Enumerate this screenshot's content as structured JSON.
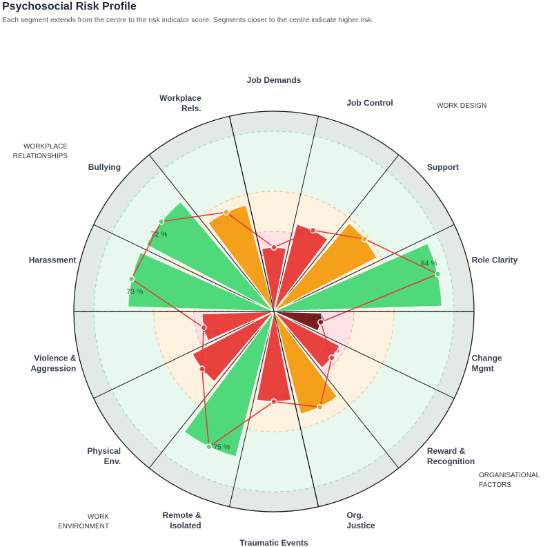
{
  "header": {
    "title": "Psychosocial Risk Profile",
    "subtitle": "Each segment extends from the centre to the risk indicator score. Segments closer to the centre indicate higher risk."
  },
  "colors": {
    "low": "#e8423f",
    "moderate": "#f5a01a",
    "high": "#4fd97a",
    "critical": "#7a1f1f",
    "line": "#e83a3a",
    "ring_outer": "#e3e9e5",
    "zone_green": "#e8f8ef",
    "zone_orange": "#fdf1e0",
    "zone_red": "#fde3e5"
  },
  "chart_data": {
    "type": "polar-bar",
    "title": "Psychosocial Risk Profile",
    "subtitle": "Each segment extends from the centre to the risk indicator score. Segments closer to the centre indicate higher risk.",
    "radial_range": [
      0,
      100
    ],
    "categories": [
      "Job Demands",
      "Job Control",
      "Support",
      "Role Clarity",
      "Change\nMgmt",
      "Reward &\nRecognition",
      "Org.\nJustice",
      "Traumatic Events",
      "Remote &\nIsolated",
      "Physical\nEnv.",
      "Violence &\nAggression",
      "Harassment",
      "Bullying",
      "Workplace\nRels."
    ],
    "values": [
      32,
      45,
      58,
      84,
      24,
      37,
      53,
      45,
      75,
      46,
      36,
      73,
      72,
      55
    ],
    "value_labels": [
      "32 %",
      "45 %",
      "58 %",
      "84 %",
      "24 %",
      "37 %",
      "53 %",
      "45 %",
      "75 %",
      "46 %",
      "36 %",
      "73 %",
      "72 %",
      "55 %"
    ],
    "bar_colors": [
      "#e8423f",
      "#e8423f",
      "#f5a01a",
      "#4fd97a",
      "#7a1f1f",
      "#e8423f",
      "#f5a01a",
      "#e8423f",
      "#4fd97a",
      "#e8423f",
      "#e8423f",
      "#4fd97a",
      "#4fd97a",
      "#f5a01a"
    ],
    "label_colors": [
      "#d63b3b",
      "#d63b3b",
      "#e39a1e",
      "#1f4d2e",
      "#3a1f1f",
      "#d63b3b",
      "#e39a1e",
      "#d63b3b",
      "#1f4d2e",
      "#d63b3b",
      "#d63b3b",
      "#1f4d2e",
      "#1f4d2e",
      "#e39a1e"
    ],
    "zones": [
      {
        "from": 0,
        "to": 40,
        "color": "#fde3e5"
      },
      {
        "from": 40,
        "to": 60,
        "color": "#fdf1e0"
      },
      {
        "from": 60,
        "to": 90,
        "color": "#e8f8ef"
      },
      {
        "from": 90,
        "to": 100,
        "color": "#e3e9e5"
      }
    ],
    "group_labels": [
      "WORK DESIGN",
      "ORGANISATIONAL\nFACTORS",
      "WORK\nENVIRONMENT",
      "WORKPLACE\nRELATIONSHIPS"
    ],
    "group_boundaries_after_index": [
      3,
      6,
      10,
      13
    ]
  }
}
